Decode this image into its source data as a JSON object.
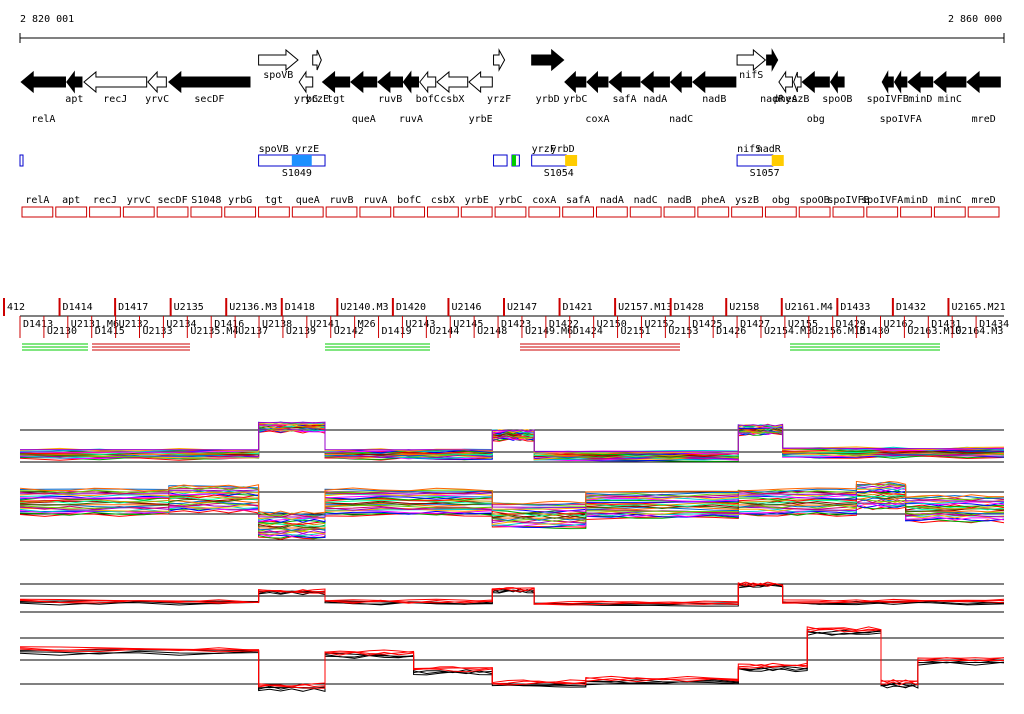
{
  "ruler": {
    "start_label": "2 820 001",
    "end_label": "2 860 000",
    "start": 2820001,
    "end": 2860000
  },
  "colors": {
    "gene_fill": "#000000",
    "gene_open": "#ffffff",
    "promoter_box": "#0000cc",
    "peak_blue": "#1e90ff",
    "peak_yellow": "#ffcc00",
    "feature_red": "#cc0000",
    "green_mark": "#00cc00",
    "expression_red": "#ff0000",
    "expression_black": "#000000"
  },
  "genes": [
    {
      "name": "relA",
      "start": 2820050,
      "end": 2821850,
      "strand": "-",
      "fill": "black",
      "label_row": 2
    },
    {
      "name": "apt",
      "start": 2821900,
      "end": 2822520,
      "strand": "-",
      "fill": "black",
      "label_row": 1
    },
    {
      "name": "recJ",
      "start": 2822600,
      "end": 2825150,
      "strand": "-",
      "fill": "open",
      "label_row": 1
    },
    {
      "name": "yrvC",
      "start": 2825200,
      "end": 2825950,
      "strand": "-",
      "fill": "open",
      "label_row": 1
    },
    {
      "name": "secDF",
      "start": 2826050,
      "end": 2829350,
      "strand": "-",
      "fill": "black",
      "label_row": 1
    },
    {
      "name": "spoVB",
      "start": 2829700,
      "end": 2831300,
      "strand": "+",
      "fill": "open",
      "label_row": 0
    },
    {
      "name": "yrbG",
      "start": 2831350,
      "end": 2831900,
      "strand": "-",
      "fill": "open",
      "label_row": 1
    },
    {
      "name": "yrzE",
      "start": 2831900,
      "end": 2832250,
      "strand": "+",
      "fill": "open",
      "label_row": 1
    },
    {
      "name": "tgt",
      "start": 2832300,
      "end": 2833400,
      "strand": "-",
      "fill": "black",
      "label_row": 1
    },
    {
      "name": "queA",
      "start": 2833450,
      "end": 2834500,
      "strand": "-",
      "fill": "black",
      "label_row": 2
    },
    {
      "name": "ruvB",
      "start": 2834550,
      "end": 2835550,
      "strand": "-",
      "fill": "black",
      "label_row": 1
    },
    {
      "name": "ruvA",
      "start": 2835580,
      "end": 2836200,
      "strand": "-",
      "fill": "black",
      "label_row": 2
    },
    {
      "name": "bofC",
      "start": 2836250,
      "end": 2836900,
      "strand": "-",
      "fill": "open",
      "label_row": 1
    },
    {
      "name": "csbX",
      "start": 2836950,
      "end": 2838200,
      "strand": "-",
      "fill": "open",
      "label_row": 1
    },
    {
      "name": "yrbE",
      "start": 2838250,
      "end": 2839200,
      "strand": "-",
      "fill": "open",
      "label_row": 2
    },
    {
      "name": "yrzF",
      "start": 2839250,
      "end": 2839700,
      "strand": "+",
      "fill": "open",
      "label_row": 1
    },
    {
      "name": "yrbD",
      "start": 2840800,
      "end": 2842100,
      "strand": "+",
      "fill": "black",
      "label_row": 1
    },
    {
      "name": "yrbC",
      "start": 2842150,
      "end": 2843000,
      "strand": "-",
      "fill": "black",
      "label_row": 1
    },
    {
      "name": "coxA",
      "start": 2843050,
      "end": 2843900,
      "strand": "-",
      "fill": "black",
      "label_row": 2
    },
    {
      "name": "safA",
      "start": 2843950,
      "end": 2845200,
      "strand": "-",
      "fill": "black",
      "label_row": 1
    },
    {
      "name": "nadA",
      "start": 2845250,
      "end": 2846400,
      "strand": "-",
      "fill": "black",
      "label_row": 1
    },
    {
      "name": "nadC",
      "start": 2846450,
      "end": 2847300,
      "strand": "-",
      "fill": "black",
      "label_row": 2
    },
    {
      "name": "nadB",
      "start": 2847350,
      "end": 2849100,
      "strand": "-",
      "fill": "black",
      "label_row": 1
    },
    {
      "name": "nifS",
      "start": 2849150,
      "end": 2850300,
      "strand": "+",
      "fill": "open",
      "label_row": 0
    },
    {
      "name": "nadR",
      "start": 2850350,
      "end": 2850800,
      "strand": "+",
      "fill": "black",
      "label_row": 1
    },
    {
      "name": "pheA",
      "start": 2850850,
      "end": 2851400,
      "strand": "-",
      "fill": "open",
      "label_row": 1
    },
    {
      "name": "yszB",
      "start": 2851450,
      "end": 2851750,
      "strand": "-",
      "fill": "open",
      "label_row": 1
    },
    {
      "name": "obg",
      "start": 2851800,
      "end": 2852900,
      "strand": "-",
      "fill": "black",
      "label_row": 2
    },
    {
      "name": "spoOB",
      "start": 2852950,
      "end": 2853500,
      "strand": "-",
      "fill": "black",
      "label_row": 1
    },
    {
      "name": "spoIVFB",
      "start": 2855050,
      "end": 2855500,
      "strand": "-",
      "fill": "black",
      "label_row": 1
    },
    {
      "name": "spoIVFA",
      "start": 2855550,
      "end": 2856050,
      "strand": "-",
      "fill": "black",
      "label_row": 2
    },
    {
      "name": "minD",
      "start": 2856100,
      "end": 2857100,
      "strand": "-",
      "fill": "black",
      "label_row": 1
    },
    {
      "name": "minC",
      "start": 2857150,
      "end": 2858450,
      "strand": "-",
      "fill": "black",
      "label_row": 1
    },
    {
      "name": "mreD",
      "start": 2858500,
      "end": 2859850,
      "strand": "-",
      "fill": "black",
      "label_row": 2
    }
  ],
  "promoter_regions": [
    {
      "name": "",
      "start": 2820001,
      "end": 2820060,
      "peak": "none"
    },
    {
      "name": "S1049",
      "start": 2829700,
      "end": 2832400,
      "peak": "blue",
      "upper_labels": [
        "spoVB",
        "yrzE"
      ]
    },
    {
      "name": "",
      "start": 2839250,
      "end": 2839800,
      "peak": "none"
    },
    {
      "name": "",
      "start": 2840000,
      "end": 2840300,
      "peak": "green"
    },
    {
      "name": "S1054",
      "start": 2840800,
      "end": 2842200,
      "peak": "yellow",
      "upper_labels": [
        "yrzF",
        "yrbD"
      ]
    },
    {
      "name": "S1057",
      "start": 2849150,
      "end": 2850600,
      "peak": "yellow",
      "upper_labels": [
        "nifS",
        "nadR"
      ]
    }
  ],
  "transcripts": [
    {
      "name": "relA",
      "label": "relA"
    },
    {
      "name": "apt",
      "label": "apt"
    },
    {
      "name": "recJ",
      "label": "recJ"
    },
    {
      "name": "yrvC",
      "label": "yrvC"
    },
    {
      "name": "secDF",
      "label": "secDF"
    },
    {
      "name": "S1048",
      "label": "S1048"
    },
    {
      "name": "yrbG",
      "label": "yrbG"
    },
    {
      "name": "tgt",
      "label": "tgt"
    },
    {
      "name": "queA",
      "label": "queA"
    },
    {
      "name": "ruvB",
      "label": "ruvB"
    },
    {
      "name": "ruvA",
      "label": "ruvA"
    },
    {
      "name": "bofC",
      "label": "bofC"
    },
    {
      "name": "csbX",
      "label": "csbX"
    },
    {
      "name": "yrbE",
      "label": "yrbE"
    },
    {
      "name": "yrbC",
      "label": "yrbC"
    },
    {
      "name": "coxA",
      "label": "coxA"
    },
    {
      "name": "safA",
      "label": "safA"
    },
    {
      "name": "nadA",
      "label": "nadA"
    },
    {
      "name": "nadC",
      "label": "nadC"
    },
    {
      "name": "nadB",
      "label": "nadB"
    },
    {
      "name": "pheA",
      "label": "pheA"
    },
    {
      "name": "yszB",
      "label": "yszB"
    },
    {
      "name": "obg",
      "label": "obg"
    },
    {
      "name": "spoOB",
      "label": "spoOB"
    },
    {
      "name": "spoIVFB",
      "label": "spoIVFB"
    },
    {
      "name": "spoIVFA",
      "label": "spoIVFA"
    },
    {
      "name": "minD",
      "label": "minD"
    },
    {
      "name": "minC",
      "label": "minC"
    },
    {
      "name": "mreD",
      "label": "mreD"
    }
  ],
  "segments_upper": [
    "412",
    "D1414",
    "D1417",
    "U2135",
    "U2136.M3",
    "D1418",
    "U2140.M3",
    "D1420",
    "U2146",
    "U2147",
    "D1421",
    "U2157.M13",
    "D1428",
    "U2158",
    "U2161.M4",
    "D1433",
    "D1432",
    "U2165.M21"
  ],
  "segments_lower": [
    "D1413",
    "U2130",
    "U2131.M6",
    "D1415",
    "U2132",
    "U2133",
    "U2134",
    "U2135.M4",
    "D1416",
    "U2137",
    "U2138",
    "U2139",
    "U2141",
    "U2142",
    "M26",
    "D1419",
    "U2143",
    "U2144",
    "U2145",
    "U2148",
    "D1423",
    "U2149.M6",
    "D1422",
    "D1424",
    "U2150",
    "U2151",
    "U2152",
    "U2153",
    "D1425",
    "D1426",
    "D1427",
    "U2154.M3",
    "U2155",
    "U2156.M15",
    "D1429",
    "D1430",
    "U2162",
    "U2163.M10",
    "D1431",
    "U2164.M3",
    "D1434"
  ],
  "expression_panels": {
    "tiling_top": "multi-condition profiles, upper strand",
    "tiling_bottom": "multi-condition profiles, lower strand",
    "replicate_top": "replicate profiles, upper strand",
    "replicate_bottom": "replicate profiles, lower strand"
  },
  "expression_steps_top": [
    {
      "start": 2820001,
      "end": 2829700,
      "level": 0.15
    },
    {
      "start": 2829700,
      "end": 2832400,
      "level": 0.65
    },
    {
      "start": 2832400,
      "end": 2839200,
      "level": 0.15
    },
    {
      "start": 2839200,
      "end": 2840900,
      "level": 0.5
    },
    {
      "start": 2840900,
      "end": 2849200,
      "level": 0.12
    },
    {
      "start": 2849200,
      "end": 2851000,
      "level": 0.6
    },
    {
      "start": 2851000,
      "end": 2860000,
      "level": 0.18
    }
  ],
  "expression_steps_bottom": [
    {
      "start": 2820001,
      "end": 2826050,
      "level": 0.55
    },
    {
      "start": 2826050,
      "end": 2829700,
      "level": 0.6
    },
    {
      "start": 2829700,
      "end": 2832400,
      "level": 0.2
    },
    {
      "start": 2832400,
      "end": 2839200,
      "level": 0.55
    },
    {
      "start": 2839200,
      "end": 2843000,
      "level": 0.35
    },
    {
      "start": 2843000,
      "end": 2849200,
      "level": 0.5
    },
    {
      "start": 2849200,
      "end": 2854000,
      "level": 0.55
    },
    {
      "start": 2854000,
      "end": 2856000,
      "level": 0.65
    },
    {
      "start": 2856000,
      "end": 2860000,
      "level": 0.45
    }
  ],
  "replicate_steps_top": [
    {
      "start": 2820001,
      "end": 2829700,
      "level": 0.3
    },
    {
      "start": 2829700,
      "end": 2832400,
      "level": 0.6
    },
    {
      "start": 2832400,
      "end": 2839200,
      "level": 0.3
    },
    {
      "start": 2839200,
      "end": 2840900,
      "level": 0.65
    },
    {
      "start": 2840900,
      "end": 2849200,
      "level": 0.25
    },
    {
      "start": 2849200,
      "end": 2851000,
      "level": 0.8
    },
    {
      "start": 2851000,
      "end": 2860000,
      "level": 0.3
    }
  ],
  "replicate_steps_bottom": [
    {
      "start": 2820001,
      "end": 2829700,
      "level": 0.6
    },
    {
      "start": 2829700,
      "end": 2832400,
      "level": 0.05
    },
    {
      "start": 2832400,
      "end": 2836000,
      "level": 0.55
    },
    {
      "start": 2836000,
      "end": 2839200,
      "level": 0.3
    },
    {
      "start": 2839200,
      "end": 2843000,
      "level": 0.1
    },
    {
      "start": 2843000,
      "end": 2849200,
      "level": 0.15
    },
    {
      "start": 2849200,
      "end": 2852000,
      "level": 0.35
    },
    {
      "start": 2852000,
      "end": 2855000,
      "level": 0.9
    },
    {
      "start": 2855000,
      "end": 2856500,
      "level": 0.1
    },
    {
      "start": 2856500,
      "end": 2860000,
      "level": 0.45
    }
  ]
}
